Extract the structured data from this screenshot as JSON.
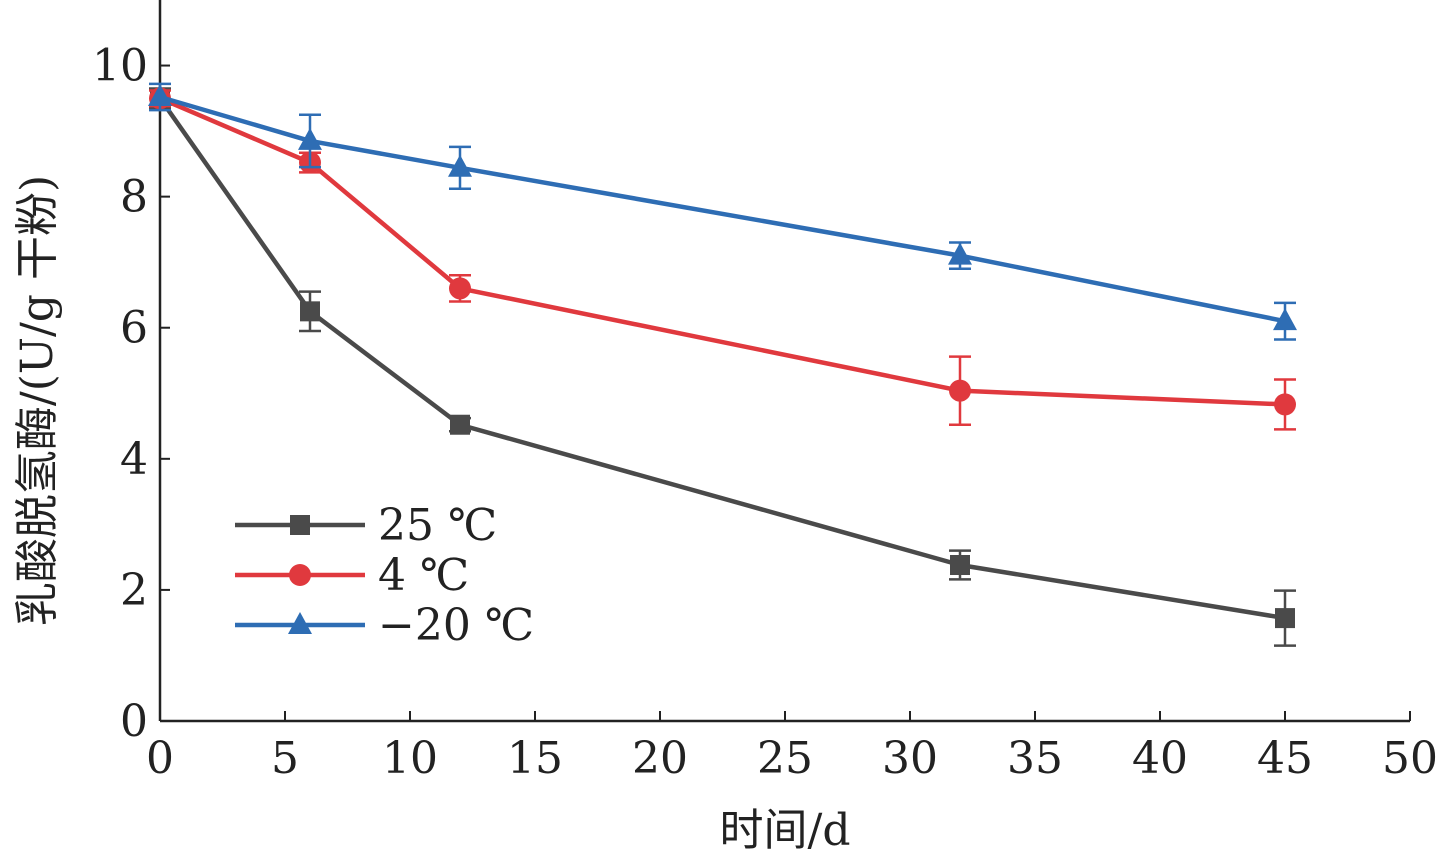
{
  "chart_data": {
    "type": "line",
    "xlabel": "时间/d",
    "ylabel": "乳酸脱氢酶/(U/g 干粉)",
    "xlim": [
      0,
      50
    ],
    "ylim": [
      0,
      11
    ],
    "xticks": [
      0,
      5,
      10,
      15,
      20,
      25,
      30,
      35,
      40,
      45,
      50
    ],
    "yticks": [
      0,
      2,
      4,
      6,
      8,
      10
    ],
    "xtick_labels": [
      "0",
      "5",
      "10",
      "15",
      "20",
      "25",
      "30",
      "35",
      "40",
      "45",
      "50"
    ],
    "ytick_labels": [
      "0",
      "2",
      "4",
      "6",
      "8",
      "10"
    ],
    "grid": false,
    "legend_position": "bottom-left",
    "series": [
      {
        "name": "25 ℃",
        "color": "#4a4a4a",
        "marker": "square",
        "x": [
          0,
          6,
          12,
          32,
          45
        ],
        "y": [
          9.5,
          6.25,
          4.52,
          2.38,
          1.57
        ],
        "err": [
          0.15,
          0.3,
          0.1,
          0.22,
          0.42
        ]
      },
      {
        "name": "4 ℃",
        "color": "#e0393e",
        "marker": "circle",
        "x": [
          0,
          6,
          12,
          32,
          45
        ],
        "y": [
          9.5,
          8.52,
          6.6,
          5.04,
          4.83
        ],
        "err": [
          0.12,
          0.15,
          0.2,
          0.52,
          0.38
        ]
      },
      {
        "name": "−20 ℃",
        "color": "#2e6db4",
        "marker": "triangle",
        "x": [
          0,
          6,
          12,
          32,
          45
        ],
        "y": [
          9.52,
          8.85,
          8.44,
          7.1,
          6.1
        ],
        "err": [
          0.2,
          0.4,
          0.32,
          0.2,
          0.28
        ]
      }
    ]
  }
}
